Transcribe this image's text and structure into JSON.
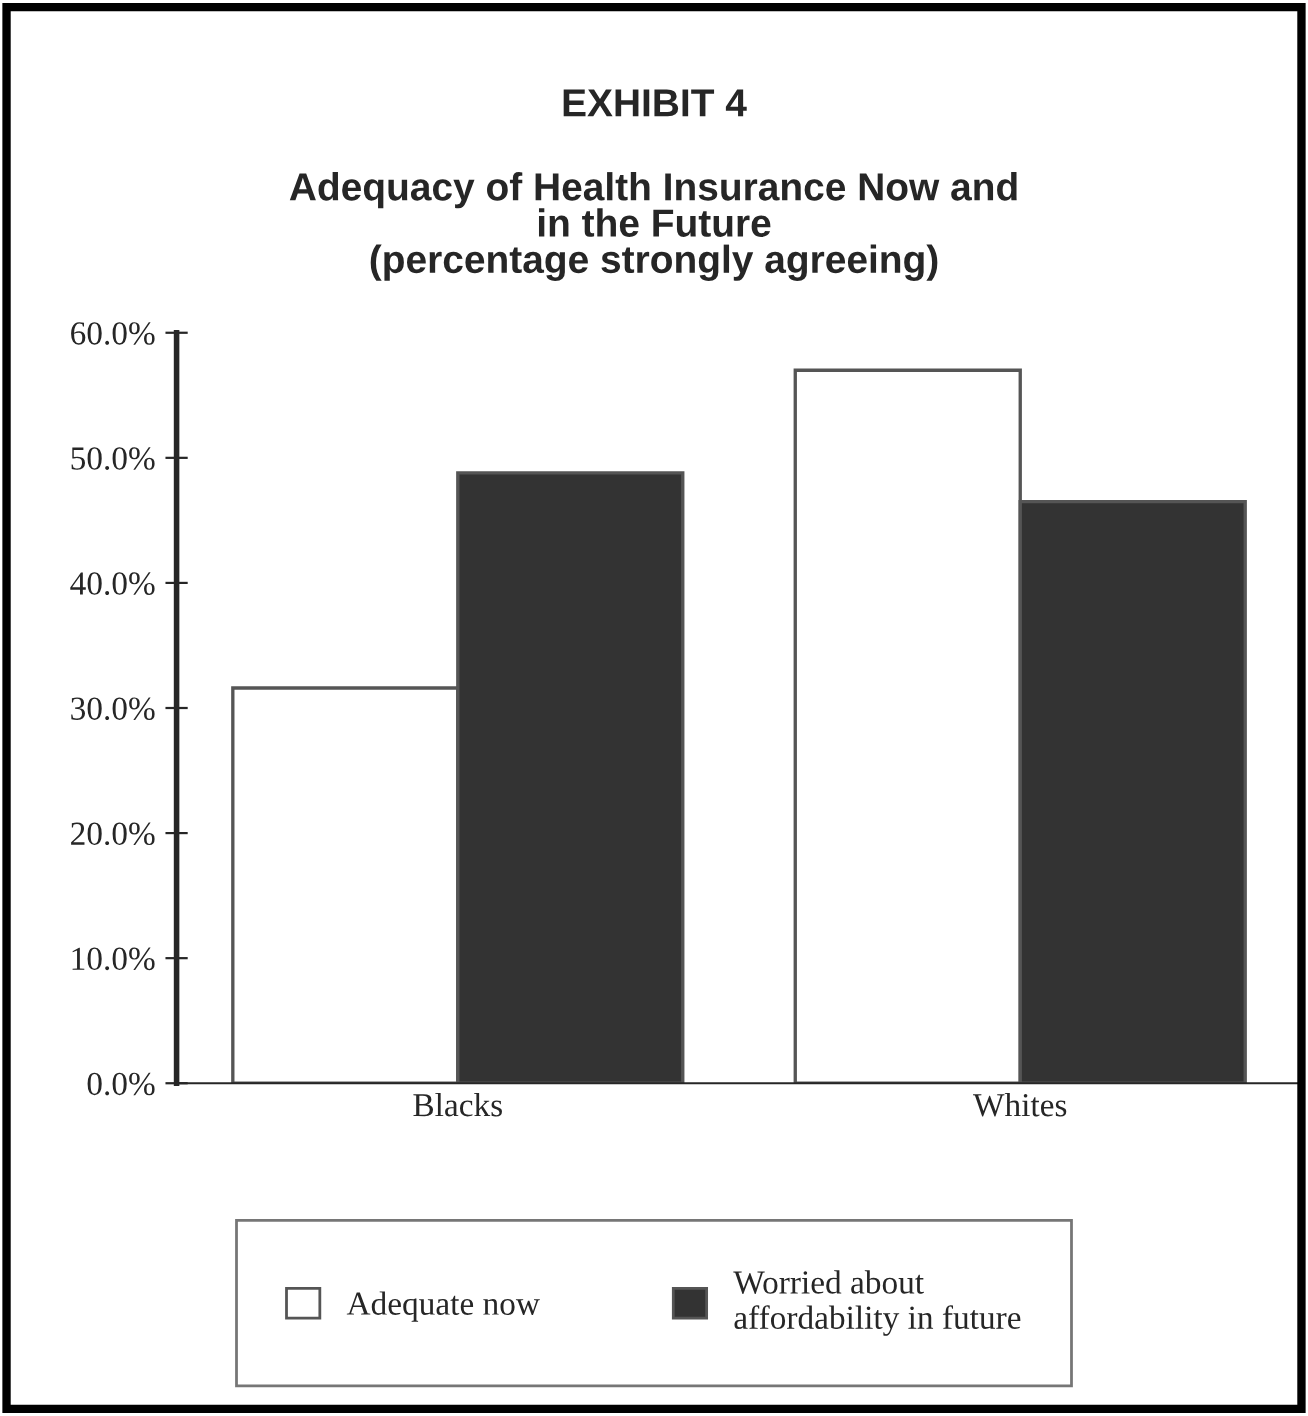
{
  "chart_data": {
    "type": "bar",
    "title": "EXHIBIT 4",
    "subtitle": "Adequacy of Health Insurance Now and\nin the Future\n(percentage strongly agreeing)",
    "categories": [
      "Blacks",
      "Whites"
    ],
    "series": [
      {
        "name": "Adequate now",
        "color": "#ffffff",
        "values": [
          31.6,
          57.0
        ]
      },
      {
        "name": "Worried about\naffordability in future",
        "color": "#333333",
        "values": [
          48.8,
          46.5
        ]
      }
    ],
    "ylim": [
      0,
      60
    ],
    "yticks": [
      {
        "value": 0,
        "label": "0.0%"
      },
      {
        "value": 10,
        "label": "10.0%"
      },
      {
        "value": 20,
        "label": "20.0%"
      },
      {
        "value": 30,
        "label": "30.0%"
      },
      {
        "value": 40,
        "label": "40.0%"
      },
      {
        "value": 50,
        "label": "50.0%"
      },
      {
        "value": 60,
        "label": "60.0%"
      }
    ],
    "grid": false,
    "legend": "bottom"
  }
}
